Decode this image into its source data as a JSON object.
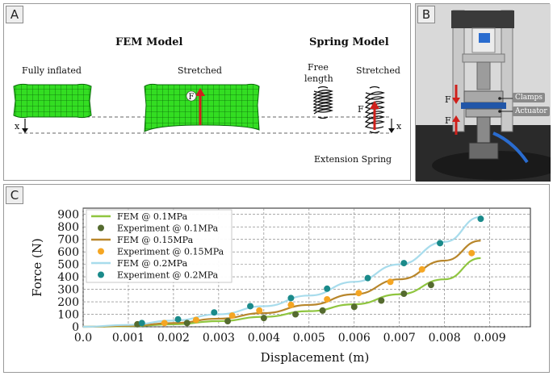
{
  "panelA": {
    "label": "A",
    "fem_title": "FEM Model",
    "spring_title": "Spring Model",
    "fully_inflated": "Fully inflated",
    "stretched": "Stretched",
    "free_length": "Free length",
    "spring_stretched": "Stretched",
    "extension_spring": "Extension Spring",
    "force_symbol": "F",
    "x_symbol": "x"
  },
  "panelB": {
    "label": "B",
    "clamps": "Clamps",
    "actuator": "Actuator",
    "force_symbol": "F"
  },
  "panelC": {
    "label": "C"
  },
  "colors": {
    "fem_01": "#8fc53f",
    "exp_01": "#556b2f",
    "fem_015": "#b8862b",
    "exp_015": "#f5a623",
    "fem_02": "#a8dcec",
    "exp_02": "#1a8a8a",
    "mesh": "#22cc22",
    "arrow": "#d0201b"
  },
  "chart_data": {
    "type": "scatter",
    "xlabel": "Displacement (m)",
    "ylabel": "Force (N)",
    "xlim": [
      0,
      0.0099
    ],
    "ylim": [
      0,
      950
    ],
    "xticks": [
      0.0,
      0.001,
      0.002,
      0.003,
      0.004,
      0.005,
      0.006,
      0.007,
      0.008,
      0.009
    ],
    "xtick_labels": [
      "0.0",
      "0.001",
      "0.002",
      "0.003",
      "0.004",
      "0.005",
      "0.006",
      "0.007",
      "0.008",
      "0.009"
    ],
    "yticks": [
      0,
      100,
      200,
      300,
      400,
      500,
      600,
      700,
      800,
      900
    ],
    "ytick_labels": [
      "0",
      "100",
      "200",
      "300",
      "400",
      "500",
      "600",
      "700",
      "800",
      "900"
    ],
    "grid": true,
    "legend_position": "top-left",
    "series": [
      {
        "name": "FEM @ 0.1MPa",
        "kind": "line",
        "color": "#8fc53f",
        "x": [
          0.0,
          0.001,
          0.002,
          0.003,
          0.004,
          0.005,
          0.006,
          0.007,
          0.008,
          0.0088
        ],
        "y": [
          0,
          5,
          20,
          45,
          80,
          125,
          180,
          260,
          380,
          550
        ]
      },
      {
        "name": "Experiment @ 0.1MPa",
        "kind": "points",
        "color": "#556b2f",
        "x": [
          0.0012,
          0.0023,
          0.0032,
          0.004,
          0.0047,
          0.0053,
          0.006,
          0.0066,
          0.0071,
          0.0077
        ],
        "y": [
          20,
          30,
          45,
          70,
          100,
          130,
          160,
          210,
          265,
          335
        ]
      },
      {
        "name": "FEM @ 0.15MPa",
        "kind": "line",
        "color": "#b8862b",
        "x": [
          0.0,
          0.001,
          0.002,
          0.003,
          0.004,
          0.005,
          0.006,
          0.007,
          0.008,
          0.0088
        ],
        "y": [
          0,
          8,
          30,
          65,
          110,
          175,
          260,
          380,
          530,
          690
        ]
      },
      {
        "name": "Experiment @ 0.15MPa",
        "kind": "points",
        "color": "#f5a623",
        "x": [
          0.0018,
          0.0025,
          0.0033,
          0.0039,
          0.0046,
          0.0054,
          0.0061,
          0.0068,
          0.0075,
          0.0086
        ],
        "y": [
          30,
          55,
          90,
          130,
          175,
          220,
          270,
          360,
          460,
          590
        ]
      },
      {
        "name": "FEM @ 0.2MPa",
        "kind": "line",
        "color": "#a8dcec",
        "x": [
          0.0,
          0.001,
          0.002,
          0.003,
          0.004,
          0.005,
          0.006,
          0.007,
          0.008,
          0.0088
        ],
        "y": [
          0,
          15,
          50,
          100,
          165,
          250,
          360,
          500,
          680,
          880
        ]
      },
      {
        "name": "Experiment @ 0.2MPa",
        "kind": "points",
        "color": "#1a8a8a",
        "x": [
          0.0013,
          0.0021,
          0.0029,
          0.0037,
          0.0046,
          0.0054,
          0.0063,
          0.0071,
          0.0079,
          0.0088
        ],
        "y": [
          30,
          60,
          115,
          165,
          230,
          305,
          390,
          510,
          670,
          865
        ]
      }
    ]
  }
}
